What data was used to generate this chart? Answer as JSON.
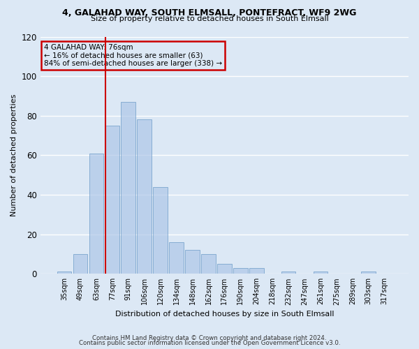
{
  "title1": "4, GALAHAD WAY, SOUTH ELMSALL, PONTEFRACT, WF9 2WG",
  "title2": "Size of property relative to detached houses in South Elmsall",
  "xlabel": "Distribution of detached houses by size in South Elmsall",
  "ylabel": "Number of detached properties",
  "categories": [
    "35sqm",
    "49sqm",
    "63sqm",
    "77sqm",
    "91sqm",
    "106sqm",
    "120sqm",
    "134sqm",
    "148sqm",
    "162sqm",
    "176sqm",
    "190sqm",
    "204sqm",
    "218sqm",
    "232sqm",
    "247sqm",
    "261sqm",
    "275sqm",
    "289sqm",
    "303sqm",
    "317sqm"
  ],
  "values": [
    1,
    10,
    61,
    75,
    87,
    78,
    44,
    16,
    12,
    10,
    5,
    3,
    3,
    0,
    1,
    0,
    1,
    0,
    0,
    1,
    0
  ],
  "bar_color": "#aec6e8",
  "bar_edge_color": "#5a8fc0",
  "bar_alpha": 0.7,
  "vline_x_index": 3,
  "vline_color": "#cc0000",
  "annotation_title": "4 GALAHAD WAY: 76sqm",
  "annotation_line1": "← 16% of detached houses are smaller (63)",
  "annotation_line2": "84% of semi-detached houses are larger (338) →",
  "annotation_box_color": "#cc0000",
  "ylim": [
    0,
    120
  ],
  "yticks": [
    0,
    20,
    40,
    60,
    80,
    100,
    120
  ],
  "footer1": "Contains HM Land Registry data © Crown copyright and database right 2024.",
  "footer2": "Contains public sector information licensed under the Open Government Licence v3.0.",
  "bg_color": "#dce8f5",
  "grid_color": "#ffffff"
}
